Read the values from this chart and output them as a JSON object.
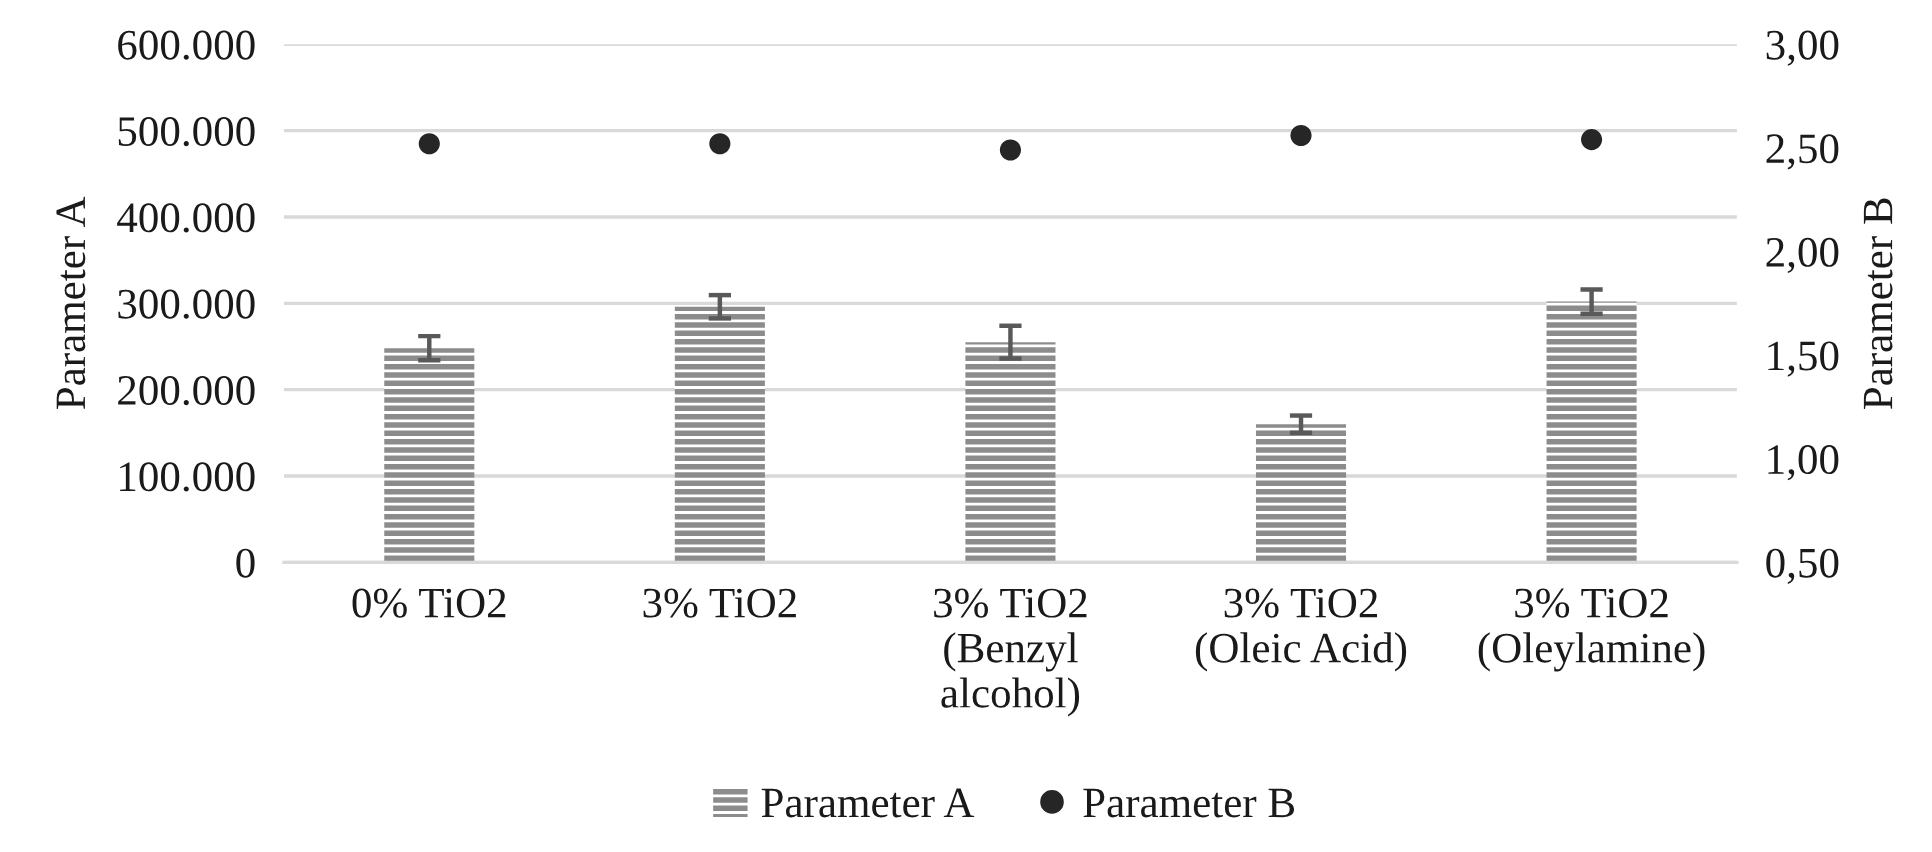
{
  "chart_data": {
    "type": "bar",
    "categories": [
      "0% TiO2",
      "3% TiO2",
      "3% TiO2\n(Benzyl\nalcohol)",
      "3% TiO2\n(Oleic Acid)",
      "3% TiO2\n(Oleylamine)"
    ],
    "series": [
      {
        "name": "Parameter A",
        "color": "#8c8c8c",
        "values": [
          248000,
          296000,
          255000,
          160000,
          302000
        ],
        "errors": [
          14000,
          13500,
          19000,
          10000,
          14000
        ]
      },
      {
        "name": "Parameter B",
        "type": "scatter",
        "axis": "y2",
        "color": "#262626",
        "marker": "circle",
        "values": [
          2.52,
          2.52,
          2.49,
          2.56,
          2.54
        ]
      }
    ],
    "ylabel": "Parameter A",
    "y2label": "Parameter B",
    "ylim": [
      0,
      600000
    ],
    "yticks": [
      0,
      {
        "value": 100000,
        "label": "100.000"
      },
      {
        "value": 200000,
        "label": "200.000"
      },
      {
        "value": 300000,
        "label": "300.000"
      },
      {
        "value": 400000,
        "label": "400.000"
      },
      {
        "value": 500000,
        "label": "500.000"
      },
      {
        "value": 600000,
        "label": "600.000"
      }
    ],
    "y2lim": [
      0.5,
      3.0
    ],
    "y2ticks": [
      {
        "value": 0.5,
        "label": "0,50"
      },
      {
        "value": 1.0,
        "label": "1,00"
      },
      {
        "value": 1.5,
        "label": "1,50"
      },
      {
        "value": 2.0,
        "label": "2,00"
      },
      {
        "value": 2.5,
        "label": "2,50"
      },
      {
        "value": 3.0,
        "label": "3,00"
      }
    ],
    "grid": "y",
    "legend": "bottom"
  }
}
